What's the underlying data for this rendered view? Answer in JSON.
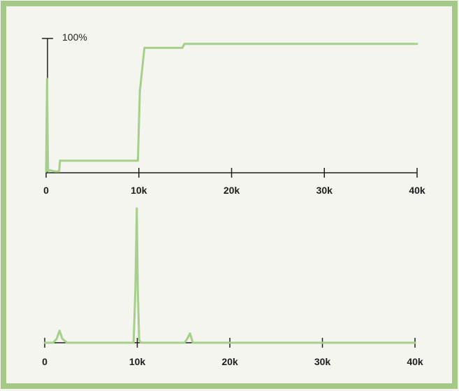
{
  "colors": {
    "frame": "#a6c98a",
    "background": "#f4f5ef",
    "axis": "#1e1e1e",
    "trace": "#a6cf8c"
  },
  "chart_data": [
    {
      "type": "line",
      "title": "",
      "xlabel": "",
      "ylabel": "",
      "xlim": [
        0,
        40000
      ],
      "ylim": [
        0,
        100
      ],
      "x_tick_values": [
        0,
        10000,
        20000,
        30000,
        40000
      ],
      "x_tick_labels": [
        "0",
        "10k",
        "20k",
        "30k",
        "40k"
      ],
      "y_top_label": "100%",
      "grid": false,
      "legend": "none",
      "series": [
        {
          "x": [
            0,
            100,
            200,
            250,
            300,
            1000,
            1400,
            1500,
            9600,
            9900,
            10100,
            10600,
            14700,
            14900,
            20000,
            30000,
            40000
          ],
          "y": [
            1,
            70,
            3,
            1,
            2,
            1,
            1,
            9,
            9,
            9,
            60,
            93,
            93,
            96,
            96,
            96,
            96
          ]
        }
      ]
    },
    {
      "type": "line",
      "title": "",
      "xlabel": "",
      "ylabel": "",
      "xlim": [
        0,
        40000
      ],
      "ylim": [
        0,
        100
      ],
      "x_tick_values": [
        0,
        10000,
        20000,
        30000,
        40000
      ],
      "x_tick_labels": [
        "0",
        "10k",
        "20k",
        "30k",
        "40k"
      ],
      "grid": false,
      "legend": "none",
      "series": [
        {
          "x": [
            0,
            900,
            1300,
            1600,
            1900,
            2400,
            9600,
            9800,
            9950,
            10050,
            10200,
            10400,
            15100,
            15400,
            15700,
            16000,
            20000,
            30000,
            40000
          ],
          "y": [
            0,
            0,
            3,
            9,
            3,
            0,
            0,
            40,
            100,
            40,
            2,
            0,
            0,
            3,
            7,
            0,
            0,
            0,
            0
          ]
        }
      ]
    }
  ]
}
